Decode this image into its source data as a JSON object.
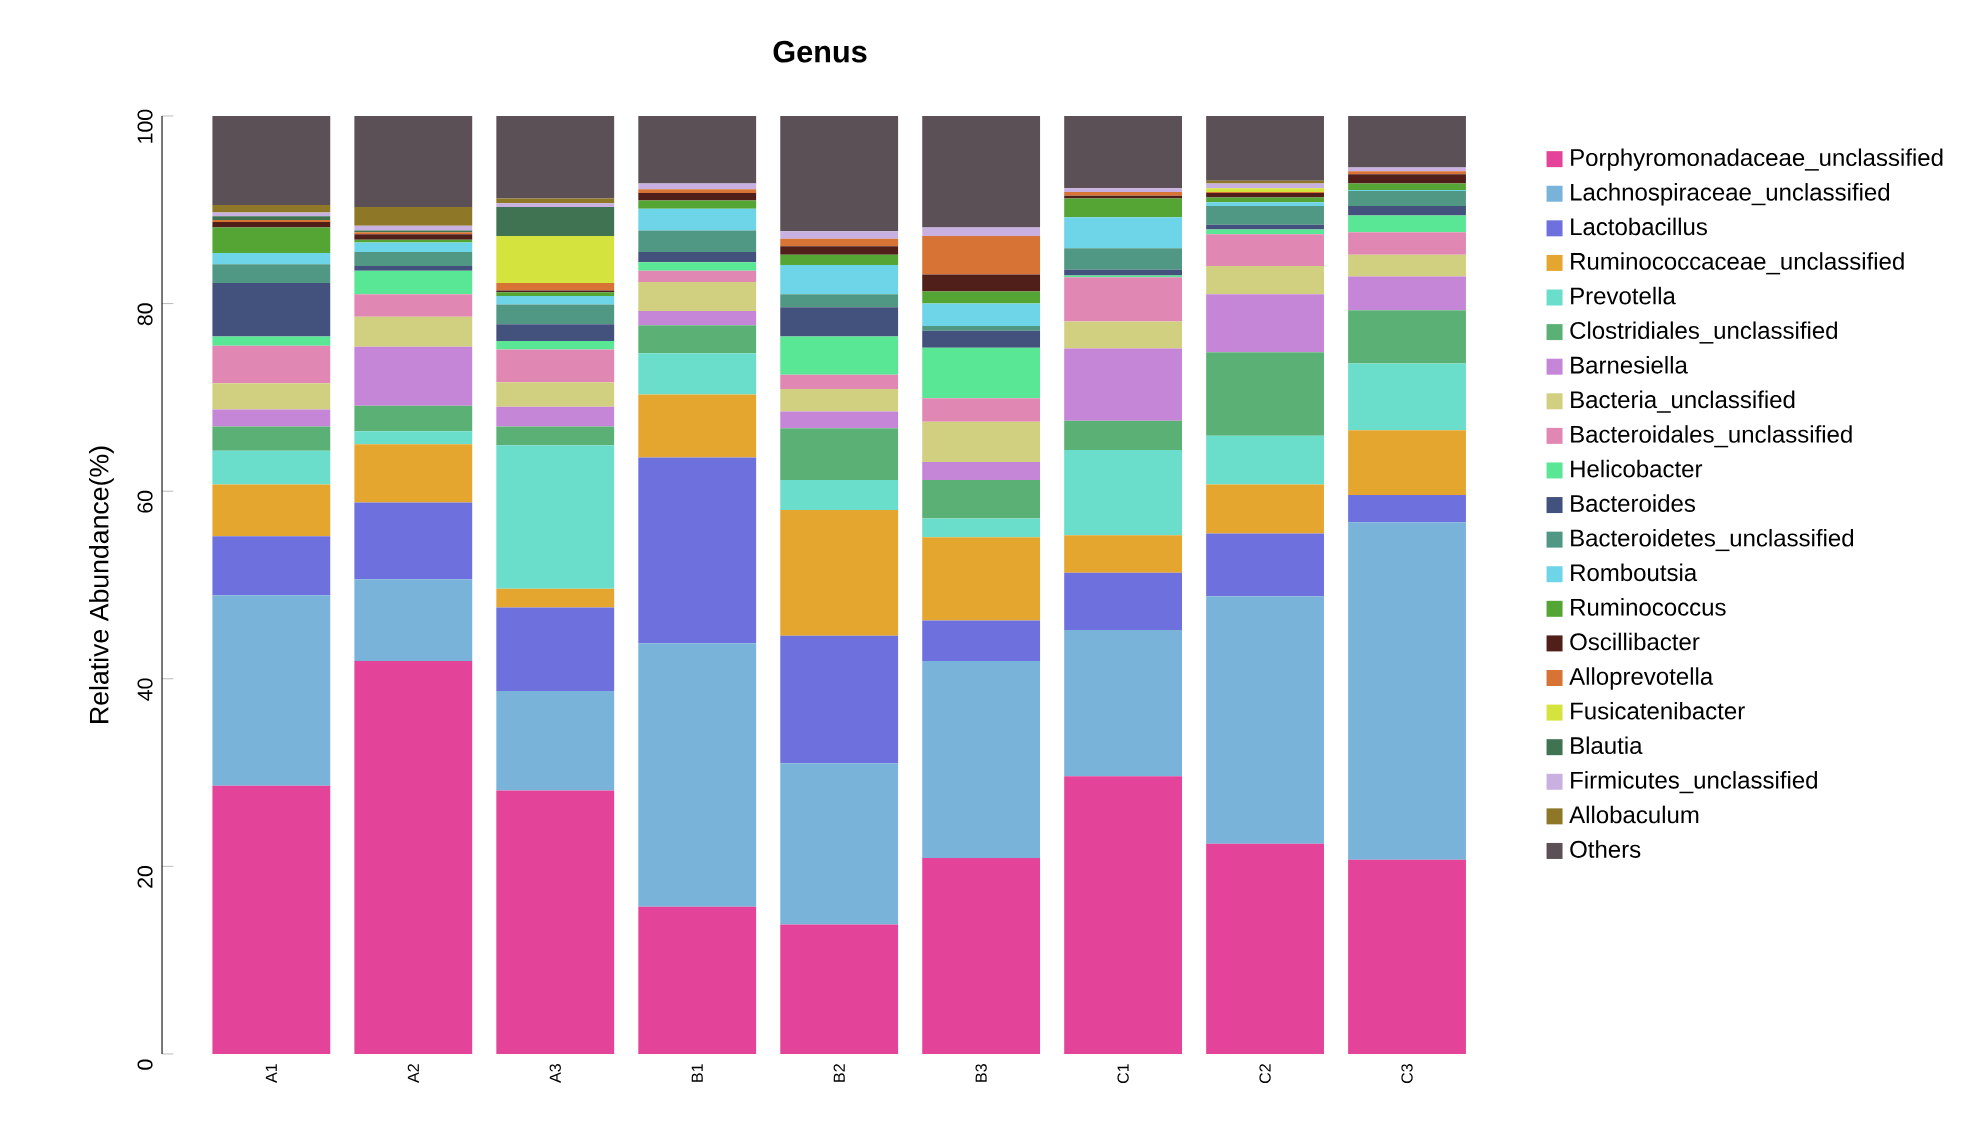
{
  "chart_data": {
    "type": "bar",
    "stacked": true,
    "title": "Genus",
    "ylabel": "Relative Abundance(%)",
    "legend": "right",
    "categories": [
      "A1",
      "A2",
      "A3",
      "B1",
      "B2",
      "B3",
      "C1",
      "C2",
      "C3"
    ],
    "ylim": [
      0,
      100
    ],
    "yticks": [
      0,
      20,
      40,
      60,
      80,
      100
    ],
    "series": [
      {
        "name": "Porphyromonadaceae_unclassified",
        "color": "#e3449a",
        "values": [
          28.6,
          41.9,
          28.1,
          15.7,
          13.8,
          20.9,
          29.6,
          22.4,
          20.7
        ]
      },
      {
        "name": "Lachnospiraceae_unclassified",
        "color": "#7ab3d9",
        "values": [
          20.3,
          8.7,
          10.6,
          28.1,
          17.2,
          21.0,
          15.6,
          26.4,
          36.0
        ]
      },
      {
        "name": "Lactobacillus",
        "color": "#6e70de",
        "values": [
          6.3,
          8.2,
          8.9,
          19.8,
          13.6,
          4.3,
          6.1,
          6.7,
          2.9
        ]
      },
      {
        "name": "Ruminococcaceae_unclassified",
        "color": "#e5a630",
        "values": [
          5.5,
          6.2,
          2.0,
          6.7,
          13.4,
          8.9,
          4.0,
          5.2,
          6.9
        ]
      },
      {
        "name": "Prevotella",
        "color": "#6addcb",
        "values": [
          3.6,
          1.4,
          15.3,
          4.4,
          3.2,
          2.0,
          9.1,
          5.2,
          7.1
        ]
      },
      {
        "name": "Clostridiales_unclassified",
        "color": "#5bb075",
        "values": [
          2.6,
          2.7,
          2.0,
          3.0,
          5.5,
          4.1,
          3.1,
          8.9,
          5.7
        ]
      },
      {
        "name": "Barnesiella",
        "color": "#c686d8",
        "values": [
          1.8,
          6.3,
          2.1,
          1.5,
          1.8,
          1.9,
          7.7,
          6.2,
          3.6
        ]
      },
      {
        "name": "Bacteria_unclassified",
        "color": "#d1d080",
        "values": [
          2.8,
          3.2,
          2.6,
          3.1,
          2.4,
          4.3,
          2.9,
          3.0,
          2.3
        ]
      },
      {
        "name": "Bacteroidales_unclassified",
        "color": "#e088b3",
        "values": [
          4.0,
          2.4,
          3.5,
          1.2,
          1.5,
          2.5,
          4.7,
          3.4,
          2.4
        ]
      },
      {
        "name": "Helicobacter",
        "color": "#5ae795",
        "values": [
          1.0,
          2.5,
          0.9,
          0.9,
          4.1,
          5.4,
          0.2,
          0.5,
          1.8
        ]
      },
      {
        "name": "Bacteroides",
        "color": "#43527d",
        "values": [
          5.7,
          0.5,
          1.8,
          1.1,
          3.1,
          1.8,
          0.6,
          0.5,
          1.0
        ]
      },
      {
        "name": "Bacteroidetes_unclassified",
        "color": "#519884",
        "values": [
          2.0,
          1.5,
          2.1,
          2.3,
          1.4,
          0.5,
          2.3,
          2.0,
          1.6
        ]
      },
      {
        "name": "Romboutsia",
        "color": "#6dd5e7",
        "values": [
          1.2,
          1.0,
          0.9,
          2.3,
          3.1,
          2.4,
          3.3,
          0.4,
          0.1
        ]
      },
      {
        "name": "Ruminococcus",
        "color": "#55a535",
        "values": [
          2.7,
          0.3,
          0.4,
          0.9,
          1.1,
          1.3,
          2.0,
          0.5,
          0.7
        ]
      },
      {
        "name": "Oscillibacter",
        "color": "#511f1a",
        "values": [
          0.6,
          0.6,
          0.2,
          0.8,
          0.9,
          1.8,
          0.3,
          0.5,
          1.0
        ]
      },
      {
        "name": "Alloprevotella",
        "color": "#d67335",
        "values": [
          0.2,
          0.2,
          0.8,
          0.4,
          0.8,
          4.1,
          0.4,
          0.1,
          0.3
        ]
      },
      {
        "name": "Fusicatenibacter",
        "color": "#d5e33e",
        "values": [
          0,
          0,
          5.0,
          0,
          0,
          0,
          0,
          0.4,
          0
        ]
      },
      {
        "name": "Blautia",
        "color": "#3f7352",
        "values": [
          0.4,
          0.2,
          3.1,
          0,
          0,
          0,
          0,
          0,
          0
        ]
      },
      {
        "name": "Firmicutes_unclassified",
        "color": "#c8b1e0",
        "values": [
          0.4,
          0.5,
          0.4,
          0.6,
          0.8,
          0.9,
          0.4,
          0.5,
          0.4
        ]
      },
      {
        "name": "Allobaculum",
        "color": "#8e7828",
        "values": [
          0.8,
          2.0,
          0.5,
          0,
          0,
          0,
          0,
          0.3,
          0
        ]
      },
      {
        "name": "Others",
        "color": "#5b5055",
        "values": [
          9.6,
          9.7,
          8.9,
          7.2,
          12.3,
          11.9,
          7.7,
          6.9,
          5.6
        ]
      }
    ]
  }
}
